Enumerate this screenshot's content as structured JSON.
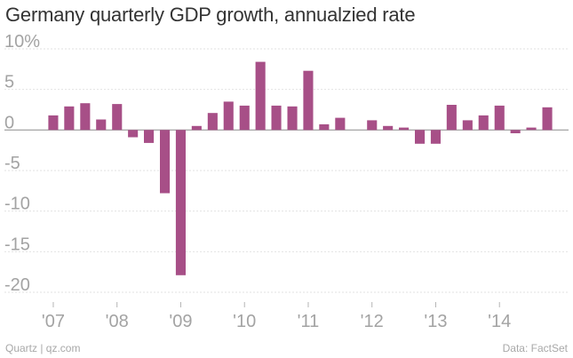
{
  "chart_data": {
    "type": "bar",
    "title": "Germany quarterly GDP growth, annualzied rate",
    "xlabel": "",
    "ylabel": "",
    "ylim": [
      -20,
      10
    ],
    "yticks": [
      10,
      5,
      0,
      -5,
      -10,
      -15,
      -20
    ],
    "ytick_labels": [
      "10%",
      "5",
      "0",
      "-5",
      "-10",
      "-15",
      "-20"
    ],
    "grid": true,
    "bar_color": "#a74f87",
    "categories": [
      "Q1 2007",
      "Q2 2007",
      "Q3 2007",
      "Q4 2007",
      "Q1 2008",
      "Q2 2008",
      "Q3 2008",
      "Q4 2008",
      "Q1 2009",
      "Q2 2009",
      "Q3 2009",
      "Q4 2009",
      "Q1 2010",
      "Q2 2010",
      "Q3 2010",
      "Q4 2010",
      "Q1 2011",
      "Q2 2011",
      "Q3 2011",
      "Q4 2011",
      "Q1 2012",
      "Q2 2012",
      "Q3 2012",
      "Q4 2012",
      "Q1 2013",
      "Q2 2013",
      "Q3 2013",
      "Q4 2013",
      "Q1 2014",
      "Q2 2014",
      "Q3 2014",
      "Q4 2014"
    ],
    "values": [
      1.8,
      2.9,
      3.3,
      1.3,
      3.2,
      -0.9,
      -1.6,
      -7.8,
      -17.9,
      0.5,
      2.1,
      3.5,
      3.0,
      8.4,
      3.0,
      2.9,
      7.3,
      0.7,
      1.5,
      0.0,
      1.2,
      0.5,
      0.3,
      -1.7,
      -1.7,
      3.1,
      1.2,
      1.8,
      3.0,
      -0.4,
      0.3,
      2.8
    ],
    "x_tick_labels": [
      "'07",
      "'08",
      "'09",
      "'10",
      "'11",
      "'12",
      "'13",
      "'14"
    ]
  },
  "footer": {
    "source_left": "Quartz | qz.com",
    "source_right": "Data: FactSet"
  }
}
